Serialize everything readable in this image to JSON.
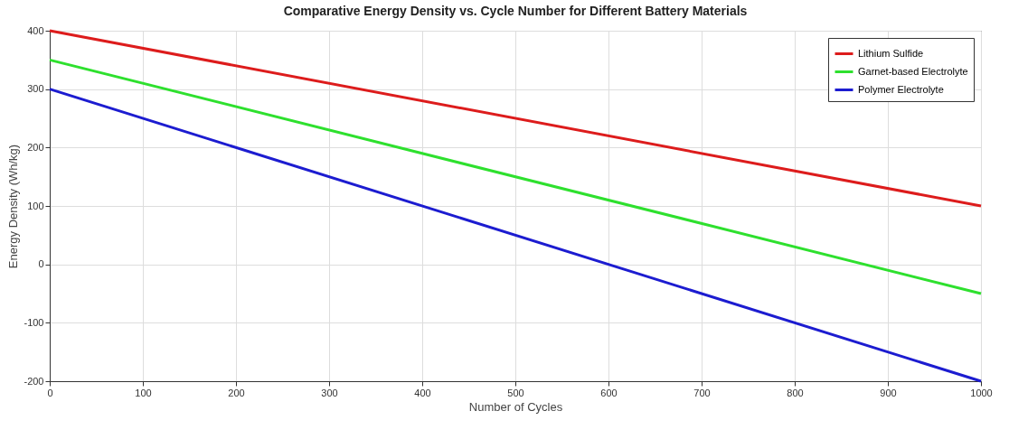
{
  "chart_data": {
    "type": "line",
    "title": "Comparative Energy Density vs. Cycle Number for Different Battery Materials",
    "xlabel": "Number of Cycles",
    "ylabel": "Energy Density (Wh/kg)",
    "x": [
      0,
      1000
    ],
    "series": [
      {
        "name": "Lithium Sulfide",
        "color": "#dd1c1c",
        "values": [
          400,
          100
        ]
      },
      {
        "name": "Garnet-based Electrolyte",
        "color": "#2ee02e",
        "values": [
          350,
          -50
        ]
      },
      {
        "name": "Polymer Electrolyte",
        "color": "#1c1cd0",
        "values": [
          300,
          -200
        ]
      }
    ],
    "xlim": [
      0,
      1000
    ],
    "xticks": [
      0,
      100,
      200,
      300,
      400,
      500,
      600,
      700,
      800,
      900,
      1000
    ],
    "ylim": [
      -200,
      400
    ],
    "yticks": [
      -200,
      -100,
      0,
      100,
      200,
      300,
      400
    ],
    "grid": true,
    "legend": "top right",
    "line_style": "solid"
  }
}
